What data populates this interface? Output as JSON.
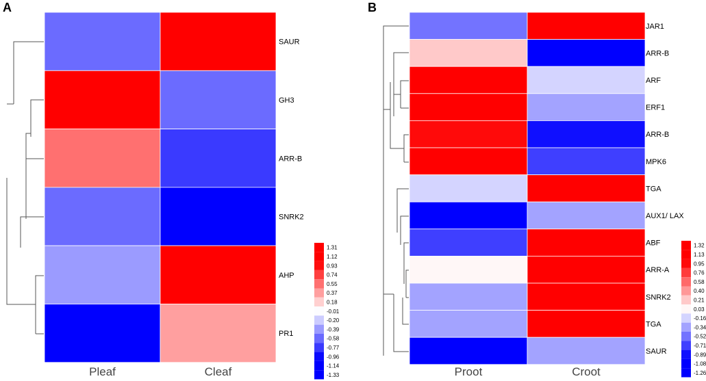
{
  "colors": {
    "high": "#ff0000",
    "mid": "#ffffff",
    "low": "#0000ff",
    "grid": "#ffffff",
    "dendrogram": "#555555"
  },
  "chart_data": [
    {
      "type": "heatmap",
      "panel": "A",
      "columns": [
        "Pleaf",
        "Cleaf"
      ],
      "rows": [
        "SAUR",
        "GH3",
        "ARR-B",
        "SNRK2",
        "AHP",
        "PR1"
      ],
      "values": [
        [
          -0.58,
          1.31
        ],
        [
          1.31,
          -0.58
        ],
        [
          0.55,
          -0.77
        ],
        [
          -0.58,
          -1.14
        ],
        [
          -0.39,
          1.31
        ],
        [
          -1.33,
          0.37
        ]
      ],
      "color_scale": {
        "min": -1.33,
        "max": 1.31,
        "low_color": "#0000ff",
        "mid_color": "#ffffff",
        "high_color": "#ff0000"
      },
      "legend_ticks": [
        "1.31",
        "1.12",
        "0.93",
        "0.74",
        "0.55",
        "0.37",
        "0.18",
        "-0.01",
        "-0.20",
        "-0.39",
        "-0.58",
        "-0.77",
        "-0.96",
        "-1.14",
        "-1.33"
      ],
      "dendrogram": "row clustering tree on the left"
    },
    {
      "type": "heatmap",
      "panel": "B",
      "columns": [
        "Proot",
        "Croot"
      ],
      "rows": [
        "JAR1",
        "ARR-B",
        "ARF",
        "ERF1",
        "ARR-B",
        "MPK6",
        "TGA",
        "AUX1/ LAX",
        "ABF",
        "ARR-A",
        "SNRK2",
        "TGA",
        "SAUR"
      ],
      "values": [
        [
          -0.52,
          1.32
        ],
        [
          0.21,
          -1.26
        ],
        [
          1.32,
          -0.16
        ],
        [
          1.32,
          -0.34
        ],
        [
          0.95,
          -0.89
        ],
        [
          1.32,
          -0.71
        ],
        [
          -0.16,
          1.32
        ],
        [
          -1.08,
          -0.34
        ],
        [
          -0.71,
          1.32
        ],
        [
          0.03,
          1.32
        ],
        [
          -0.34,
          1.32
        ],
        [
          -0.34,
          1.32
        ],
        [
          -1.26,
          -0.34
        ]
      ],
      "color_scale": {
        "min": -1.26,
        "max": 1.32,
        "low_color": "#0000ff",
        "mid_color": "#ffffff",
        "high_color": "#ff0000"
      },
      "legend_ticks": [
        "1.32",
        "1.13",
        "0.95",
        "0.76",
        "0.58",
        "0.40",
        "0.21",
        "0.03",
        "-0.16",
        "-0.34",
        "-0.52",
        "-0.71",
        "-0.89",
        "-1.08",
        "-1.26"
      ],
      "dendrogram": "row clustering tree on the left"
    }
  ]
}
